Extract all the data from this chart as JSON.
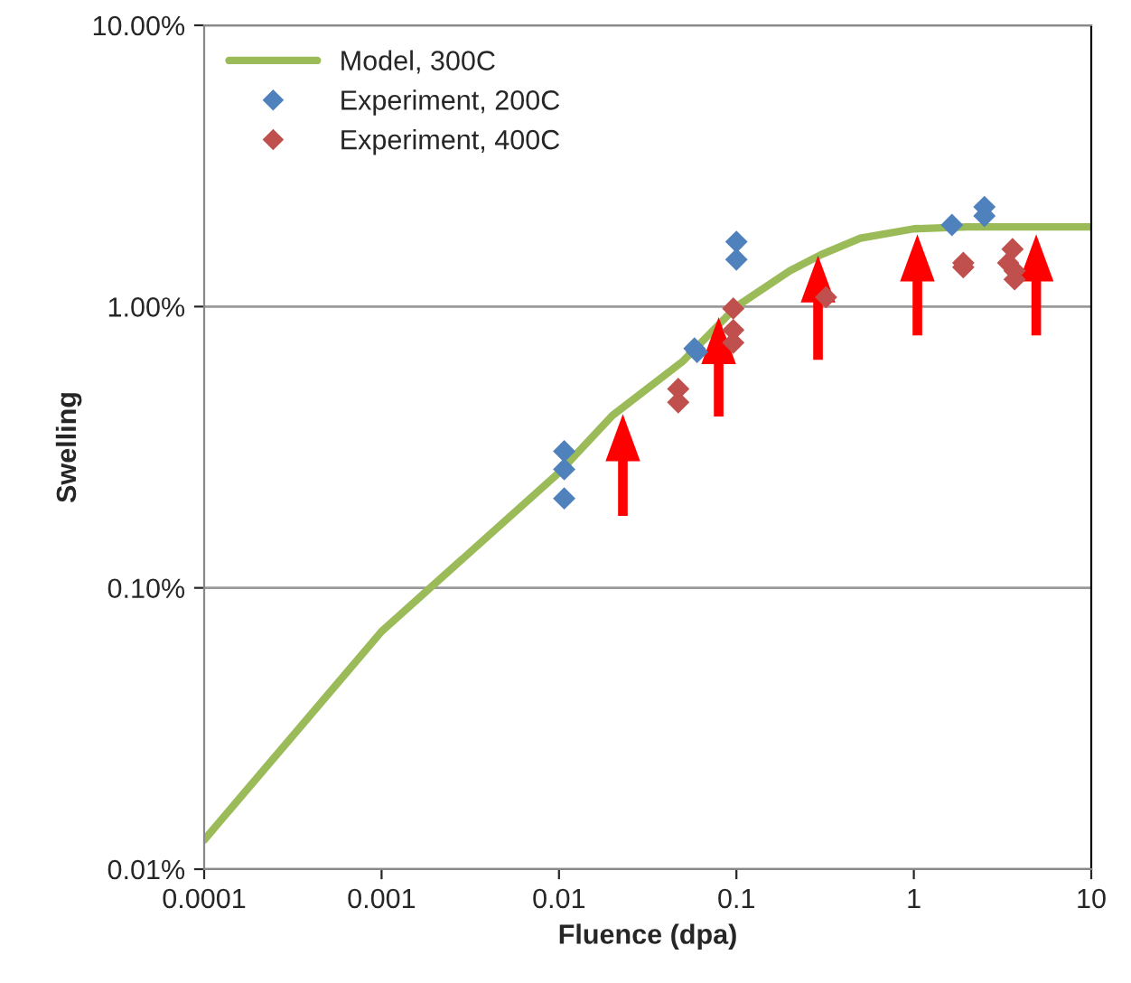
{
  "chart_data": {
    "type": "scatter",
    "xlabel": "Fluence (dpa)",
    "ylabel": "Swelling",
    "log": "xy",
    "grid": "y",
    "legend": "top left",
    "xlim": [
      0.0001,
      10
    ],
    "ylim": [
      0.01,
      10
    ],
    "xticks": [
      0.0001,
      0.001,
      0.01,
      0.1,
      1,
      10
    ],
    "yticks": [
      {
        "value": 0.01,
        "label": "0.01%"
      },
      {
        "value": 0.1,
        "label": "0.10%"
      },
      {
        "value": 1,
        "label": "1.00%"
      },
      {
        "value": 10,
        "label": "10.00%"
      }
    ],
    "series": [
      {
        "name": "Model, 300C",
        "type": "line",
        "marker": "none",
        "line_style": "solid",
        "color": "#9bbb59",
        "x": [
          0.0001,
          0.001,
          0.01,
          0.02,
          0.05,
          0.1,
          0.2,
          0.3,
          0.5,
          1,
          2,
          10
        ],
        "values": [
          0.0127,
          0.07,
          0.257,
          0.41,
          0.64,
          1.0,
          1.34,
          1.53,
          1.75,
          1.89,
          1.92,
          1.92
        ]
      },
      {
        "name": "Experiment, 200C",
        "marker": "diamond",
        "color": "#4f81bd",
        "x": [
          0.0107,
          0.0107,
          0.0107,
          0.058,
          0.06,
          0.1,
          0.1,
          1.64,
          2.5,
          2.5
        ],
        "values": [
          0.306,
          0.264,
          0.208,
          0.71,
          0.69,
          1.7,
          1.47,
          1.95,
          2.26,
          2.1
        ]
      },
      {
        "name": "Experiment, 400C",
        "marker": "diamond",
        "color": "#c0504d",
        "x": [
          0.047,
          0.047,
          0.096,
          0.096,
          0.096,
          0.32,
          1.9,
          1.9,
          3.6,
          3.4,
          3.7,
          3.7
        ],
        "values": [
          0.51,
          0.457,
          0.985,
          0.825,
          0.744,
          1.08,
          1.43,
          1.38,
          1.6,
          1.43,
          1.34,
          1.25
        ]
      }
    ]
  }
}
